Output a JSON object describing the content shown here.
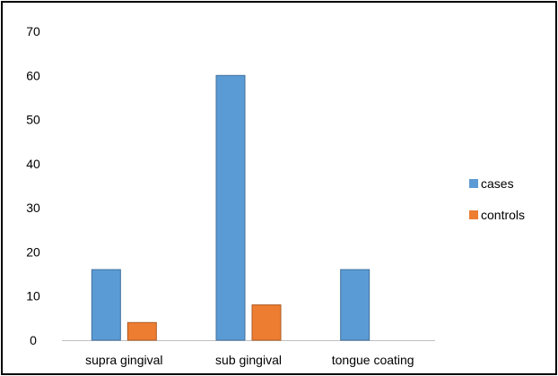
{
  "chart_data": {
    "type": "bar",
    "categories": [
      "supra gingival",
      "sub gingival",
      "tongue coating"
    ],
    "series": [
      {
        "name": "cases",
        "values": [
          16,
          60,
          16
        ],
        "color": "#5b9bd5"
      },
      {
        "name": "controls",
        "values": [
          4,
          8,
          0
        ],
        "color": "#ed7d31"
      }
    ],
    "ylim": [
      0,
      70
    ],
    "yticks": [
      0,
      10,
      20,
      30,
      40,
      50,
      60,
      70
    ],
    "grid": false,
    "legend_position": "right",
    "title": "",
    "xlabel": "",
    "ylabel": ""
  }
}
